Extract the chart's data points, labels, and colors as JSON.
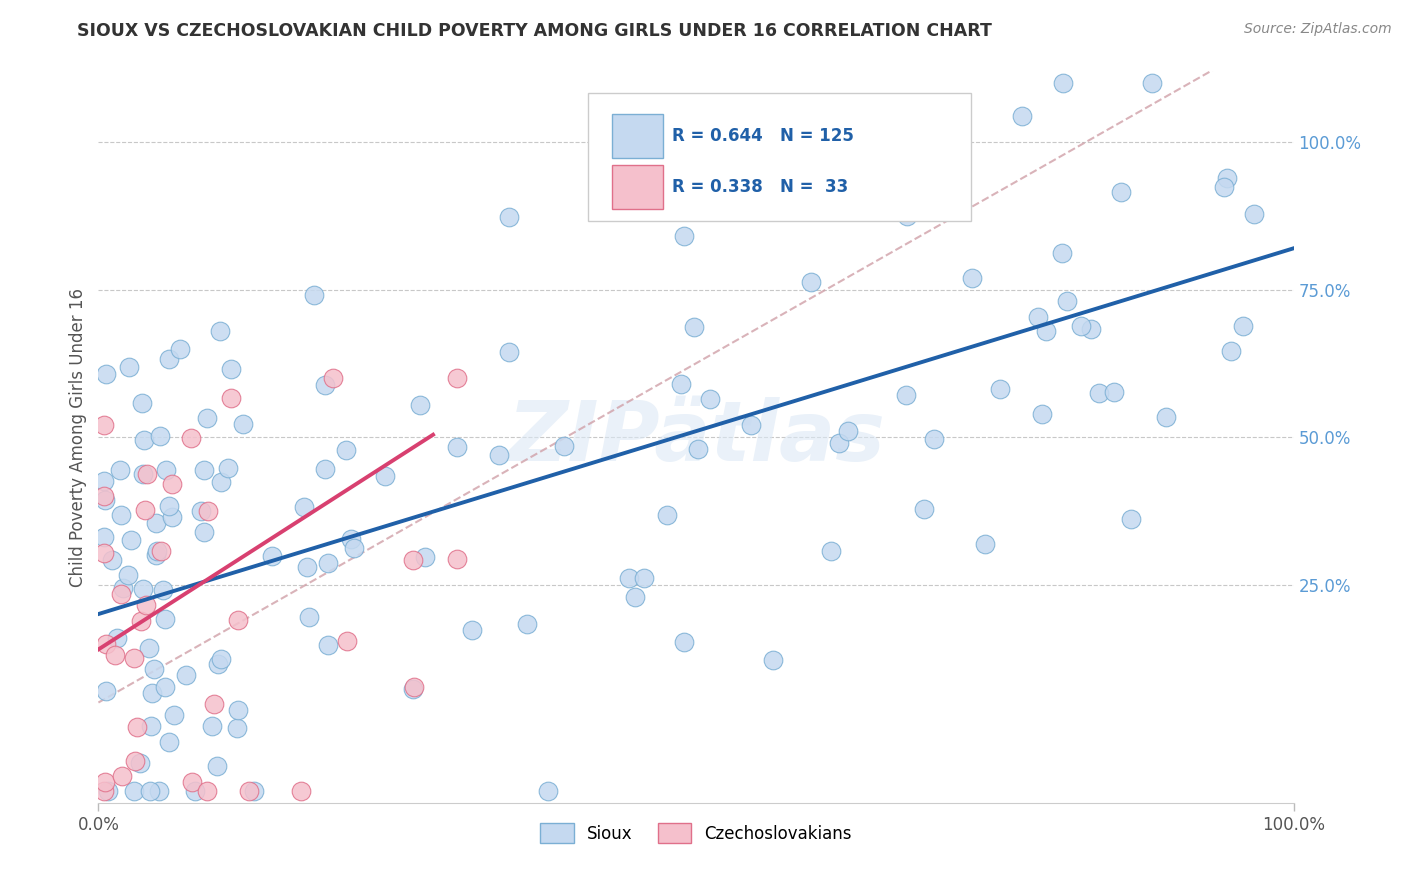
{
  "title": "SIOUX VS CZECHOSLOVAKIAN CHILD POVERTY AMONG GIRLS UNDER 16 CORRELATION CHART",
  "source": "Source: ZipAtlas.com",
  "ylabel": "Child Poverty Among Girls Under 16",
  "xlim": [
    0.0,
    1.0
  ],
  "ylim": [
    -0.12,
    1.12
  ],
  "x_tick_labels": [
    "0.0%",
    "100.0%"
  ],
  "y_tick_positions": [
    0.25,
    0.5,
    0.75,
    1.0
  ],
  "sioux_color": "#c5d9f0",
  "sioux_edge_color": "#7bafd4",
  "czech_color": "#f5c0cc",
  "czech_edge_color": "#e0708a",
  "sioux_line_color": "#2060a8",
  "czech_line_color": "#d84070",
  "dash_line_color": "#d0a0a8",
  "R_sioux": 0.644,
  "N_sioux": 125,
  "R_czech": 0.338,
  "N_czech": 33,
  "legend_labels": [
    "Sioux",
    "Czechoslovakians"
  ],
  "background_color": "#ffffff",
  "grid_color": "#c8c8c8",
  "title_color": "#333333",
  "axis_label_color": "#555555",
  "tick_label_color_right": "#5b9bd5",
  "tick_label_color_bottom": "#555555",
  "sioux_line_intercept": 0.2,
  "sioux_line_slope": 0.62,
  "czech_line_intercept": 0.14,
  "czech_line_slope": 1.3,
  "dash_line_intercept": 0.05,
  "dash_line_slope": 1.15
}
